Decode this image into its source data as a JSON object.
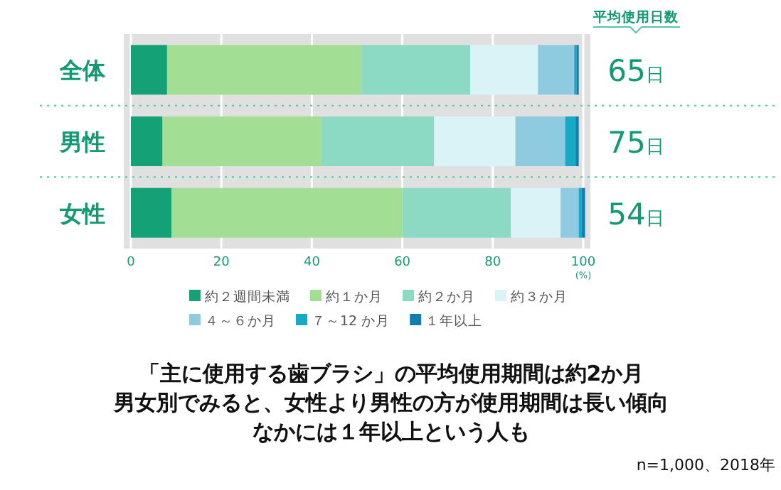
{
  "chart_data": {
    "type": "bar",
    "orientation": "horizontal",
    "stacked": true,
    "title": "「主に使用する歯ブラシ」の平均使用期間は約2か月",
    "subtitle": "男女別でみると、女性より男性の方が使用期間は長い傾向",
    "categories": [
      "全体",
      "男性",
      "女性"
    ],
    "series": [
      {
        "name": "約２週間未満",
        "color": "#13a175",
        "values": [
          8,
          7,
          9
        ]
      },
      {
        "name": "約１か月",
        "color": "#a2df94",
        "values": [
          43,
          35,
          51
        ]
      },
      {
        "name": "約２か月",
        "color": "#8cd9c4",
        "values": [
          24,
          25,
          24
        ]
      },
      {
        "name": "約３か月",
        "color": "#d9f3f7",
        "values": [
          15,
          18,
          11
        ]
      },
      {
        "name": "４～６か月",
        "color": "#8ecae0",
        "values": [
          8,
          11,
          4
        ]
      },
      {
        "name": "７～12 か月",
        "color": "#16aac6",
        "values": [
          0.5,
          2.3,
          0.6
        ]
      },
      {
        "name": "１年以上",
        "color": "#0f7fb0",
        "values": [
          0.5,
          0.7,
          0.8
        ]
      }
    ],
    "xlim": [
      0,
      100
    ],
    "xticks": [
      0,
      20,
      40,
      60,
      80,
      100
    ],
    "xlabel": "(%)",
    "grid": "x",
    "legend": "bottom",
    "annotations": [
      "平均使用日数",
      "65日",
      "75日",
      "54日",
      "なかには１年以上という人も",
      "n=1,000、2018年"
    ]
  }
}
